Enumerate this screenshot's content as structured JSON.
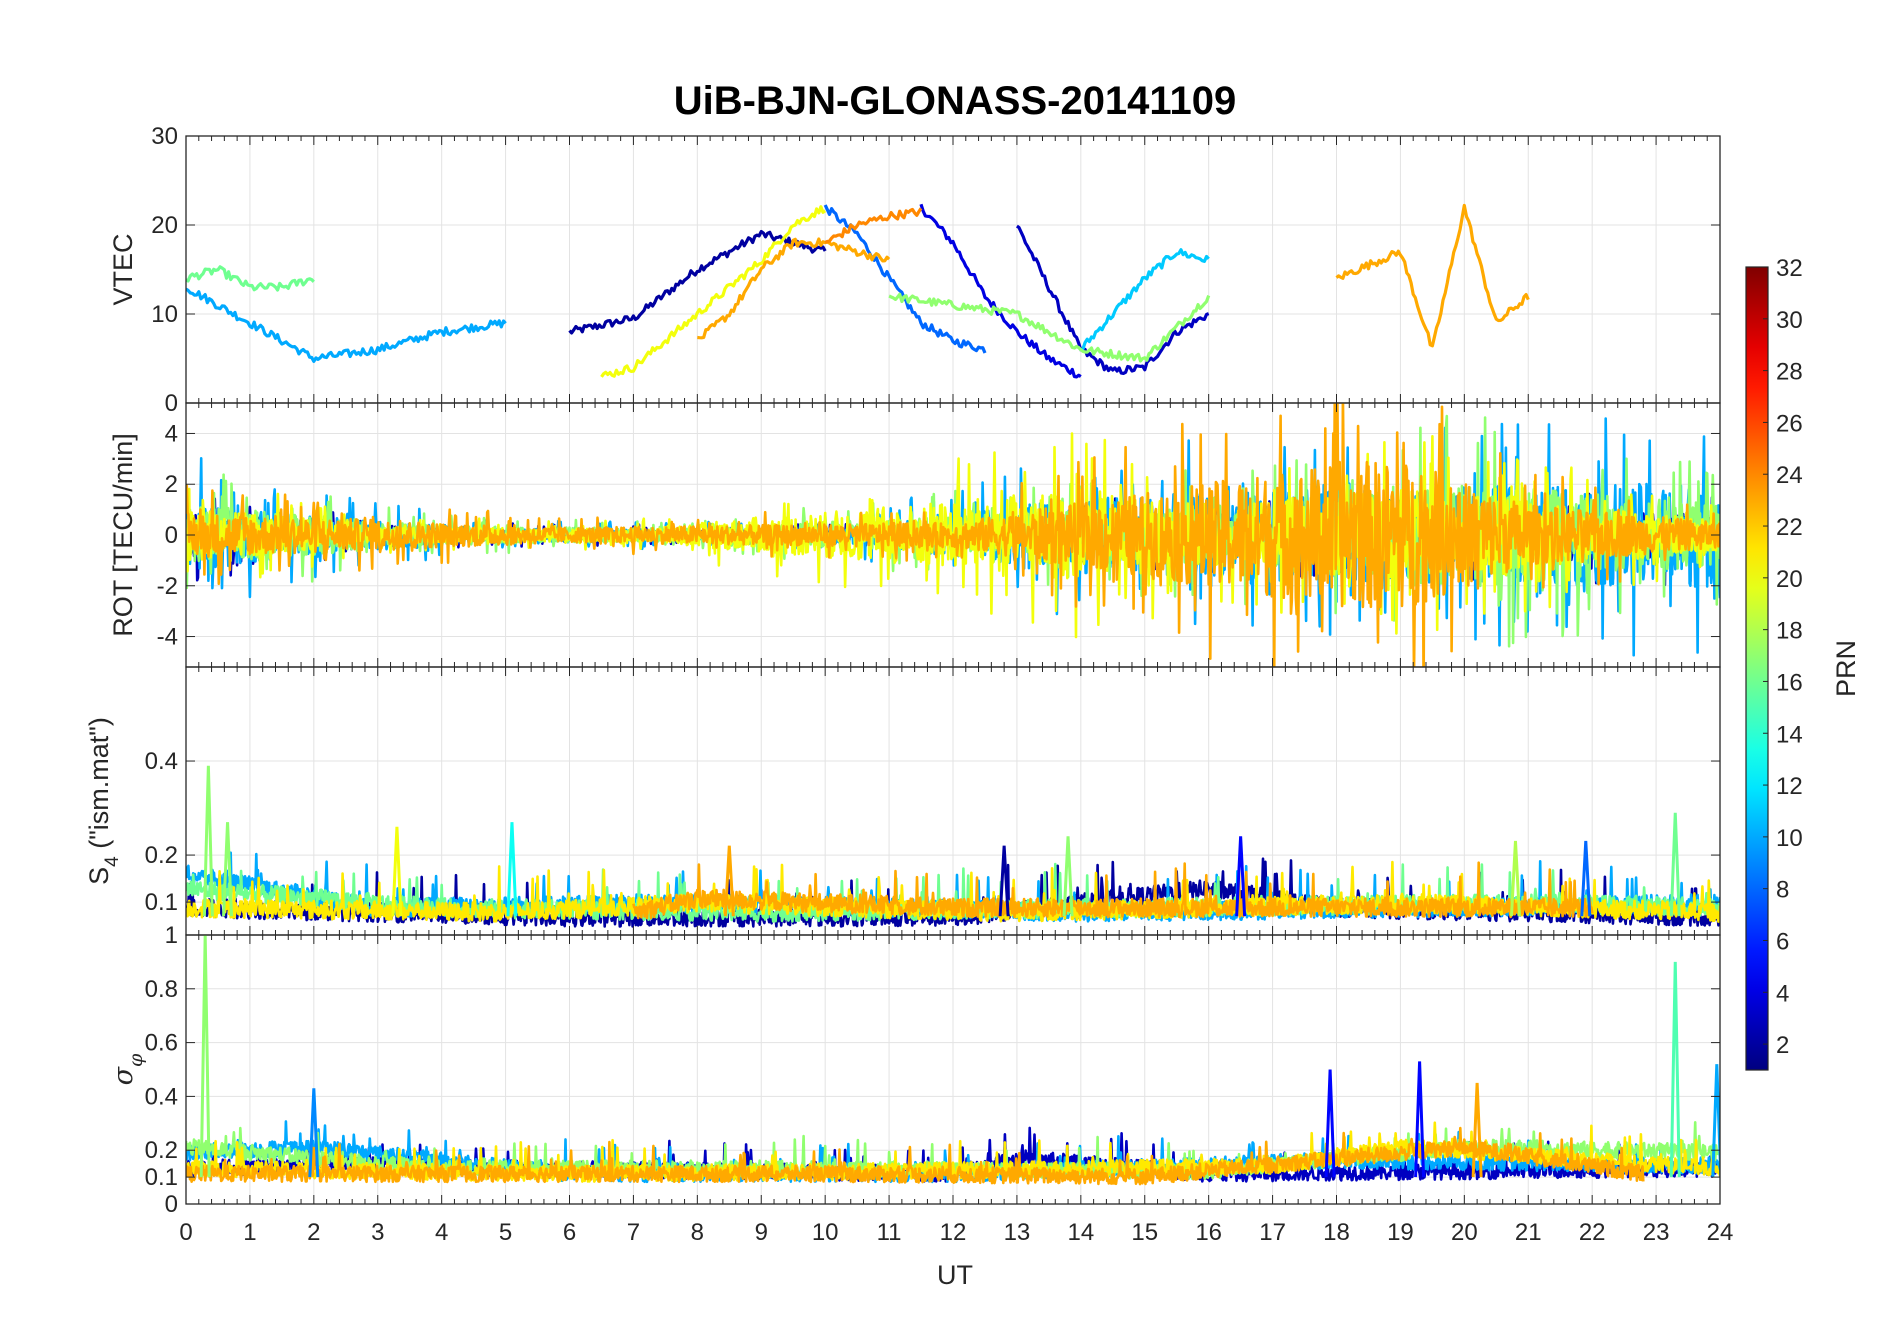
{
  "chart_data": {
    "type": "line",
    "title": "UiB-BJN-GLONASS-20141109",
    "xlabel": "UT",
    "xlim": [
      0,
      24
    ],
    "xticks": [
      "0",
      "1",
      "2",
      "3",
      "4",
      "5",
      "6",
      "7",
      "8",
      "9",
      "10",
      "11",
      "12",
      "13",
      "14",
      "15",
      "16",
      "17",
      "18",
      "19",
      "20",
      "21",
      "22",
      "23",
      "24"
    ],
    "grid": true,
    "panels": [
      {
        "id": "vtec",
        "ylabel": "VTEC",
        "ylim": [
          0,
          30
        ],
        "yticks": [
          "0",
          "10",
          "20",
          "30"
        ],
        "yticks_values": [
          0,
          10,
          20,
          30
        ],
        "series": [
          {
            "prn": 2,
            "x": [
              6,
              7,
              8,
              8.5,
              9,
              9.5,
              10
            ],
            "y": [
              8,
              9.5,
              15,
              17,
              19,
              18,
              17
            ]
          },
          {
            "prn": 4,
            "x": [
              11.5,
              12,
              12.5,
              13,
              13.5,
              14
            ],
            "y": [
              22,
              18,
              12,
              8,
              5,
              3
            ]
          },
          {
            "prn": 3,
            "x": [
              13,
              13.5,
              14,
              14.5,
              15,
              15.5,
              16
            ],
            "y": [
              20,
              13,
              6,
              3.5,
              4,
              8,
              10
            ]
          },
          {
            "prn": 8,
            "x": [
              10,
              10.5,
              11,
              11.5,
              12,
              12.5
            ],
            "y": [
              22,
              19,
              14,
              9,
              7,
              6
            ]
          },
          {
            "prn": 10,
            "x": [
              0,
              1,
              2,
              3,
              4,
              5
            ],
            "y": [
              13,
              9,
              5,
              6,
              8,
              9
            ]
          },
          {
            "prn": 11,
            "x": [
              14,
              14.5,
              15,
              15.5,
              16
            ],
            "y": [
              6,
              10,
              14,
              17,
              16
            ]
          },
          {
            "prn": 16,
            "x": [
              0,
              0.5,
              1,
              1.5,
              2
            ],
            "y": [
              14,
              15,
              13,
              13,
              14
            ]
          },
          {
            "prn": 17,
            "x": [
              11,
              12,
              13,
              14,
              15,
              16
            ],
            "y": [
              12,
              11,
              10,
              6,
              5,
              12
            ]
          },
          {
            "prn": 20,
            "x": [
              6.5,
              7,
              8,
              9,
              9.5,
              10
            ],
            "y": [
              3,
              4,
              10,
              16,
              20,
              22
            ]
          },
          {
            "prn": 23,
            "x": [
              8,
              8.5,
              9,
              9.5,
              10,
              11
            ],
            "y": [
              7,
              10,
              15,
              18,
              18,
              16
            ]
          },
          {
            "prn": 24,
            "x": [
              10,
              10.5,
              11,
              11.5
            ],
            "y": [
              18,
              20,
              21,
              21.5
            ]
          },
          {
            "prn": 23,
            "x": [
              18,
              19,
              19.5,
              20,
              20.5,
              21
            ],
            "y": [
              14,
              17,
              6,
              22,
              9,
              12
            ]
          }
        ]
      },
      {
        "id": "rot",
        "ylabel": "ROT [TECU/min]",
        "ylim": [
          -5.2,
          5.2
        ],
        "yticks": [
          "-4",
          "-2",
          "0",
          "2",
          "4"
        ],
        "yticks_values": [
          -4,
          -2,
          0,
          2,
          4
        ],
        "series": [
          {
            "prn": 3,
            "x": [
              0,
              3,
              6,
              9,
              12,
              14,
              17,
              24
            ],
            "y": [
              0,
              0,
              0,
              0,
              0,
              0,
              0,
              0
            ],
            "amplitude": [
              1.5,
              0.4,
              0.3,
              0.3,
              0.3,
              1.0,
              1.2,
              1.5
            ]
          },
          {
            "prn": 10,
            "x": [
              0,
              2,
              5,
              10,
              14,
              18,
              24
            ],
            "y": [
              0,
              0,
              0,
              0,
              0,
              0,
              0
            ],
            "amplitude": [
              2.5,
              1.2,
              0.4,
              0.4,
              2.5,
              3.0,
              3.5
            ]
          },
          {
            "prn": 17,
            "x": [
              0,
              4,
              8,
              13,
              17,
              20,
              24
            ],
            "y": [
              0,
              0,
              0,
              0,
              0,
              0,
              0
            ],
            "amplitude": [
              2.0,
              0.6,
              0.4,
              1.5,
              2.0,
              3.5,
              2.0
            ]
          },
          {
            "prn": 20,
            "x": [
              0,
              3,
              7,
              14,
              16,
              19,
              24
            ],
            "y": [
              0,
              0,
              0,
              0,
              0,
              0,
              0
            ],
            "amplitude": [
              1.8,
              0.5,
              0.4,
              3.0,
              2.0,
              3.0,
              1.0
            ]
          },
          {
            "prn": 23,
            "x": [
              0,
              6,
              12,
              18,
              19,
              21,
              24
            ],
            "y": [
              0,
              0,
              0,
              0,
              0,
              0,
              0
            ],
            "amplitude": [
              1.5,
              0.5,
              0.8,
              4.8,
              5.0,
              2.0,
              0.8
            ]
          }
        ]
      },
      {
        "id": "s4",
        "ylabel": "S4 (\"ism.mat\")",
        "ylabel_main": "S",
        "ylabel_sub": "4",
        "ylabel_rest": " (\"ism.mat\")",
        "ylim": [
          0.03,
          0.6
        ],
        "yticks": [
          "0.1",
          "0.2",
          "0.4"
        ],
        "yticks_values": [
          0.1,
          0.2,
          0.4
        ],
        "series": [
          {
            "prn": 2,
            "x": [
              0,
              6,
              12,
              16,
              18,
              24
            ],
            "y": [
              0.08,
              0.06,
              0.06,
              0.12,
              0.08,
              0.06
            ]
          },
          {
            "prn": 10,
            "x": [
              0,
              3,
              8,
              14,
              20,
              24
            ],
            "y": [
              0.15,
              0.08,
              0.09,
              0.07,
              0.08,
              0.09
            ]
          },
          {
            "prn": 16,
            "x": [
              0,
              4,
              9,
              15,
              21,
              24
            ],
            "y": [
              0.12,
              0.08,
              0.07,
              0.08,
              0.09,
              0.08
            ]
          },
          {
            "prn": 21,
            "x": [
              0,
              5,
              8,
              13,
              19,
              24
            ],
            "y": [
              0.08,
              0.07,
              0.09,
              0.07,
              0.09,
              0.07
            ]
          },
          {
            "prn": 23,
            "x": [
              7,
              8,
              10,
              12,
              16,
              22
            ],
            "y": [
              0.07,
              0.1,
              0.09,
              0.08,
              0.08,
              0.08
            ]
          }
        ],
        "peaks": [
          {
            "prn": 17,
            "x": 0.35,
            "y": 0.39
          },
          {
            "prn": 17,
            "x": 0.65,
            "y": 0.27
          },
          {
            "prn": 20,
            "x": 3.3,
            "y": 0.26
          },
          {
            "prn": 13,
            "x": 5.1,
            "y": 0.27
          },
          {
            "prn": 23,
            "x": 8.5,
            "y": 0.22
          },
          {
            "prn": 2,
            "x": 12.8,
            "y": 0.22
          },
          {
            "prn": 17,
            "x": 13.8,
            "y": 0.24
          },
          {
            "prn": 5,
            "x": 16.5,
            "y": 0.24
          },
          {
            "prn": 18,
            "x": 20.8,
            "y": 0.23
          },
          {
            "prn": 8,
            "x": 21.9,
            "y": 0.23
          },
          {
            "prn": 16,
            "x": 23.3,
            "y": 0.29
          }
        ]
      },
      {
        "id": "sigma",
        "ylabel": "σ φ",
        "ylabel_main": "σ",
        "ylabel_sub": "φ",
        "ylim": [
          0,
          1
        ],
        "yticks": [
          "0",
          "0.1",
          "0.2",
          "0.4",
          "0.6",
          "0.8",
          "1"
        ],
        "yticks_values": [
          0,
          0.1,
          0.2,
          0.4,
          0.6,
          0.8,
          1
        ],
        "series": [
          {
            "prn": 3,
            "x": [
              0,
              3,
              5,
              12,
              13,
              16,
              24
            ],
            "y": [
              0.12,
              0.14,
              0.12,
              0.1,
              0.16,
              0.1,
              0.12
            ]
          },
          {
            "prn": 10,
            "x": [
              0,
              2,
              6,
              12,
              18,
              24
            ],
            "y": [
              0.18,
              0.2,
              0.1,
              0.1,
              0.15,
              0.13
            ]
          },
          {
            "prn": 17,
            "x": [
              0,
              4,
              9,
              16,
              20,
              24
            ],
            "y": [
              0.2,
              0.12,
              0.12,
              0.11,
              0.2,
              0.18
            ]
          },
          {
            "prn": 21,
            "x": [
              0,
              6,
              11,
              17,
              19,
              24
            ],
            "y": [
              0.12,
              0.1,
              0.11,
              0.13,
              0.2,
              0.12
            ]
          },
          {
            "prn": 23,
            "x": [
              0,
              5,
              10,
              15,
              20,
              22.8
            ],
            "y": [
              0.1,
              0.1,
              0.1,
              0.09,
              0.2,
              0.1
            ]
          }
        ],
        "peaks": [
          {
            "prn": 17,
            "x": 0.3,
            "y": 1.0
          },
          {
            "prn": 9,
            "x": 2.0,
            "y": 0.43
          },
          {
            "prn": 5,
            "x": 17.9,
            "y": 0.5
          },
          {
            "prn": 5,
            "x": 19.3,
            "y": 0.53
          },
          {
            "prn": 23,
            "x": 20.2,
            "y": 0.45
          },
          {
            "prn": 15,
            "x": 23.3,
            "y": 0.9
          },
          {
            "prn": 10,
            "x": 23.95,
            "y": 0.52
          }
        ]
      }
    ],
    "colorbar": {
      "label": "PRN",
      "range": [
        1,
        32
      ],
      "ticks": [
        "2",
        "4",
        "6",
        "8",
        "10",
        "12",
        "14",
        "16",
        "18",
        "20",
        "22",
        "24",
        "26",
        "28",
        "30",
        "32"
      ],
      "ticks_values": [
        2,
        4,
        6,
        8,
        10,
        12,
        14,
        16,
        18,
        20,
        22,
        24,
        26,
        28,
        30,
        32
      ],
      "colormap": "jet"
    }
  }
}
